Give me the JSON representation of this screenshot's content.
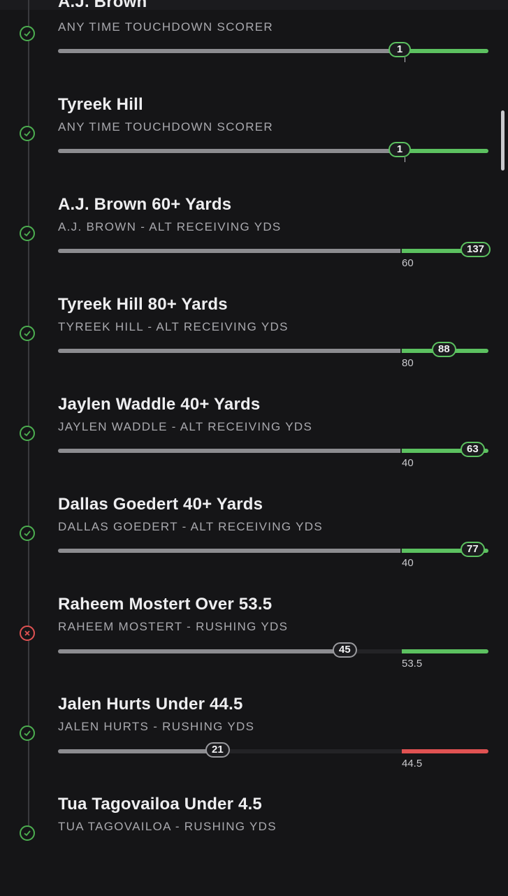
{
  "legs": [
    {
      "title": "A.J. Brown",
      "subtitle": "ANY TIME TOUCHDOWN SCORER",
      "status": "won",
      "result": "1",
      "line": "",
      "result_color": "green"
    },
    {
      "title": "Tyreek Hill",
      "subtitle": "ANY TIME TOUCHDOWN SCORER",
      "status": "won",
      "result": "1",
      "line": "",
      "result_color": "green"
    },
    {
      "title": "A.J. Brown 60+ Yards",
      "subtitle": "A.J. BROWN - ALT RECEIVING YDS",
      "status": "won",
      "result": "137",
      "line": "60",
      "result_color": "green"
    },
    {
      "title": "Tyreek Hill 80+ Yards",
      "subtitle": "TYREEK HILL - ALT RECEIVING YDS",
      "status": "won",
      "result": "88",
      "line": "80",
      "result_color": "green"
    },
    {
      "title": "Jaylen Waddle 40+ Yards",
      "subtitle": "JAYLEN WADDLE - ALT RECEIVING YDS",
      "status": "won",
      "result": "63",
      "line": "40",
      "result_color": "green"
    },
    {
      "title": "Dallas Goedert 40+ Yards",
      "subtitle": "DALLAS GOEDERT - ALT RECEIVING YDS",
      "status": "won",
      "result": "77",
      "line": "40",
      "result_color": "green"
    },
    {
      "title": "Raheem Mostert Over 53.5",
      "subtitle": "RAHEEM MOSTERT - RUSHING YDS",
      "status": "lost",
      "result": "45",
      "line": "53.5",
      "result_color": "green"
    },
    {
      "title": "Jalen Hurts Under 44.5",
      "subtitle": "JALEN HURTS - RUSHING YDS",
      "status": "won",
      "result": "21",
      "line": "44.5",
      "result_color": "red"
    },
    {
      "title": "Tua Tagovailoa Under 4.5",
      "subtitle": "TUA TAGOVAILOA - RUSHING YDS",
      "status": "won",
      "result": "",
      "line": "",
      "result_color": "green"
    }
  ],
  "colors": {
    "won": "#5cc160",
    "lost": "#e05252",
    "track": "#8c8c90",
    "background": "#151517"
  }
}
